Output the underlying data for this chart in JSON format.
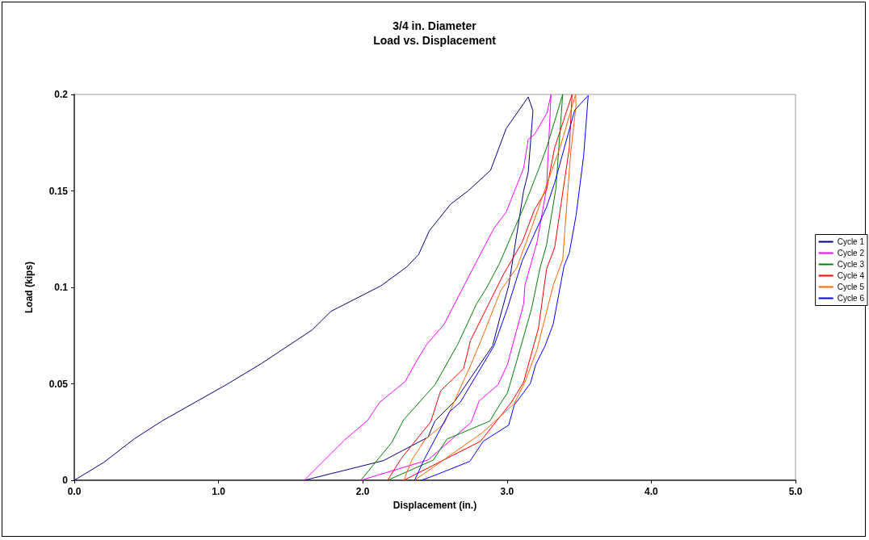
{
  "chart_data": {
    "type": "line",
    "title": "3/4 in. Diameter",
    "subtitle": "Load vs. Displacement",
    "xlabel": "Displacement (in.)",
    "ylabel": "Load (kips)",
    "xlim": [
      0,
      5
    ],
    "xticks": [
      {
        "value": 0,
        "label": "0.0"
      },
      {
        "value": 1,
        "label": "1.0"
      },
      {
        "value": 2,
        "label": "2.0"
      },
      {
        "value": 3,
        "label": "3.0"
      },
      {
        "value": 4,
        "label": "4.0"
      },
      {
        "value": 5,
        "label": "5.0"
      }
    ],
    "ylim": [
      0,
      0.2
    ],
    "yticks": [
      0,
      0.05,
      0.1,
      0.15,
      0.2
    ],
    "grid": false,
    "legend": "right",
    "marker": "none",
    "line_style": "solid",
    "series": [
      {
        "name": "Cycle 1",
        "color": "#000080",
        "x": [
          0,
          0.205,
          0.418,
          0.614,
          1.053,
          1.295,
          1.65,
          1.78,
          2.126,
          2.303,
          2.387,
          2.462,
          2.61,
          2.73,
          2.886,
          2.994,
          3.147,
          3.18,
          3.147,
          3.115,
          3.012,
          2.956,
          2.9,
          2.639,
          2.5,
          2.452,
          2.144,
          1.725,
          1.594
        ],
        "values": [
          0,
          0.0093,
          0.0216,
          0.031,
          0.0495,
          0.0604,
          0.078,
          0.0876,
          0.1008,
          0.1105,
          0.117,
          0.1294,
          0.1432,
          0.15,
          0.1607,
          0.1823,
          0.1987,
          0.1915,
          0.1597,
          0.15,
          0.101,
          0.0858,
          0.0697,
          0.0411,
          0.0307,
          0.0223,
          0.0102,
          0.0024,
          0
        ]
      },
      {
        "name": "Cycle 2",
        "color": "#ff00ff",
        "x": [
          1.594,
          1.874,
          2.033,
          2.117,
          2.294,
          2.37,
          2.443,
          2.564,
          2.686,
          2.742,
          2.91,
          2.994,
          3.115,
          3.147,
          3.19,
          3.277,
          3.305,
          3.274,
          3.208,
          3.124,
          3.115,
          3.003,
          2.937,
          2.807,
          2.751,
          2.452,
          1.986
        ],
        "values": [
          0,
          0.0209,
          0.031,
          0.0404,
          0.0512,
          0.0614,
          0.0704,
          0.0809,
          0.0986,
          0.1067,
          0.1307,
          0.139,
          0.1618,
          0.1767,
          0.1792,
          0.1904,
          0.1999,
          0.1513,
          0.1234,
          0.101,
          0.0913,
          0.06,
          0.0495,
          0.0411,
          0.03,
          0.0105,
          0
        ]
      },
      {
        "name": "Cycle 3",
        "color": "#008000",
        "x": [
          1.986,
          2.2,
          2.284,
          2.5,
          2.658,
          2.788,
          2.863,
          2.947,
          3.124,
          3.218,
          3.274,
          3.386,
          3.339,
          3.274,
          3.227,
          3.171,
          3.068,
          3.003,
          2.937,
          2.881,
          2.583,
          2.49,
          2.172
        ],
        "values": [
          0,
          0.0195,
          0.0314,
          0.0495,
          0.0704,
          0.0913,
          0.1004,
          0.1123,
          0.143,
          0.161,
          0.1723,
          0.2,
          0.1513,
          0.122,
          0.1095,
          0.0892,
          0.062,
          0.0453,
          0.0377,
          0.0307,
          0.0213,
          0.0105,
          0
        ]
      },
      {
        "name": "Cycle 4",
        "color": "#ff0000",
        "x": [
          2.172,
          2.266,
          2.471,
          2.54,
          2.699,
          2.747,
          2.975,
          3.105,
          3.19,
          3.274,
          3.33,
          3.451,
          3.432,
          3.33,
          3.274,
          3.218,
          3.115,
          3.031,
          2.816,
          2.284
        ],
        "values": [
          0,
          0.0112,
          0.0303,
          0.0464,
          0.0579,
          0.0725,
          0.1067,
          0.1234,
          0.1402,
          0.1506,
          0.1723,
          0.2,
          0.1723,
          0.1206,
          0.1095,
          0.0788,
          0.0509,
          0.0405,
          0.0202,
          0
        ]
      },
      {
        "name": "Cycle 5",
        "color": "#ff6600",
        "x": [
          2.284,
          2.34,
          2.434,
          2.564,
          2.747,
          2.816,
          2.956,
          3.068,
          3.171,
          3.292,
          3.367,
          3.475,
          3.479,
          3.441,
          3.386,
          3.32,
          3.208,
          3.124,
          3.05,
          2.825,
          2.359
        ],
        "values": [
          0,
          0.0105,
          0.0213,
          0.0293,
          0.0595,
          0.0718,
          0.0983,
          0.1102,
          0.1311,
          0.1569,
          0.1723,
          0.2,
          0.1946,
          0.1695,
          0.1144,
          0.101,
          0.0677,
          0.0509,
          0.0397,
          0.0244,
          0
        ]
      },
      {
        "name": "Cycle 6",
        "color": "#0000ff",
        "x": [
          2.359,
          2.424,
          2.602,
          2.676,
          2.91,
          3.003,
          3.105,
          3.274,
          3.33,
          3.469,
          3.563,
          3.531,
          3.479,
          3.432,
          3.395,
          3.32,
          3.264,
          3.199,
          3.162,
          3.05,
          3.012,
          2.835,
          2.742,
          2.508,
          2.406
        ],
        "values": [
          0,
          0.0105,
          0.0356,
          0.0404,
          0.0697,
          0.0892,
          0.1137,
          0.1416,
          0.1541,
          0.1918,
          0.1995,
          0.168,
          0.1374,
          0.1179,
          0.1109,
          0.0809,
          0.0697,
          0.06,
          0.0502,
          0.039,
          0.0286,
          0.0202,
          0.0098,
          0.0028,
          0
        ]
      }
    ]
  }
}
